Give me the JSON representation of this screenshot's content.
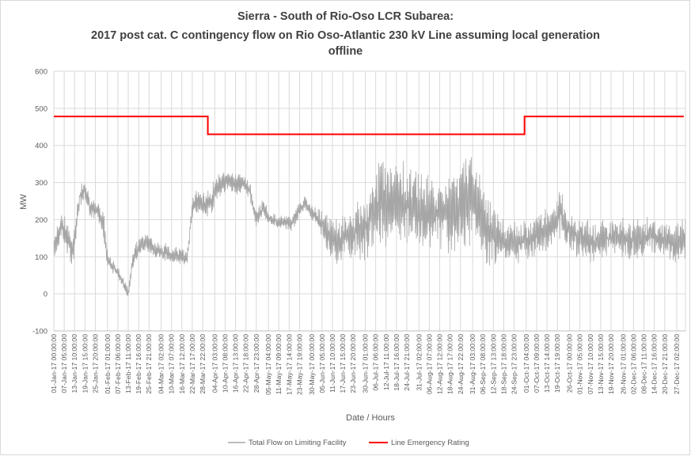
{
  "chart_data": {
    "type": "line",
    "title_lines": [
      "Sierra - South of Rio-Oso LCR Subarea:",
      "2017 post cat. C contingency flow on Rio Oso-Atlantic 230 kV Line assuming local generation",
      "offline"
    ],
    "xlabel": "Date / Hours",
    "ylabel": "MW",
    "ylim": [
      -100,
      600
    ],
    "yticks": [
      -100,
      0,
      100,
      200,
      300,
      400,
      500,
      600
    ],
    "grid": true,
    "legend_position": "bottom",
    "xticklabels": [
      "01-Jan-17 00:00:00",
      "07-Jan-17 05:00:00",
      "13-Jan-17 10:00:00",
      "19-Jan-17 15:00:00",
      "25-Jan-17 20:00:00",
      "01-Feb-17 01:00:00",
      "07-Feb-17 06:00:00",
      "13-Feb-17 11:00:00",
      "19-Feb-17 16:00:00",
      "25-Feb-17 21:00:00",
      "04-Mar-17 02:00:00",
      "10-Mar-17 07:00:00",
      "16-Mar-17 12:00:00",
      "22-Mar-17 17:00:00",
      "28-Mar-17 22:00:00",
      "04-Apr-17 03:00:00",
      "10-Apr-17 08:00:00",
      "16-Apr-17 13:00:00",
      "22-Apr-17 18:00:00",
      "28-Apr-17 23:00:00",
      "05-May-17 04:00:00",
      "11-May-17 09:00:00",
      "17-May-17 14:00:00",
      "23-May-17 19:00:00",
      "30-May-17 00:00:00",
      "05-Jun-17 05:00:00",
      "11-Jun-17 10:00:00",
      "17-Jun-17 15:00:00",
      "23-Jun-17 20:00:00",
      "30-Jun-17 01:00:00",
      "06-Jul-17 06:00:00",
      "12-Jul-17 11:00:00",
      "18-Jul-17 16:00:00",
      "24-Jul-17 21:00:00",
      "31-Jul-17 02:00:00",
      "06-Aug-17 07:00:00",
      "12-Aug-17 12:00:00",
      "18-Aug-17 17:00:00",
      "24-Aug-17 22:00:00",
      "31-Aug-17 03:00:00",
      "06-Sep-17 08:00:00",
      "12-Sep-17 13:00:00",
      "18-Sep-17 18:00:00",
      "24-Sep-17 23:00:00",
      "01-Oct-17 04:00:00",
      "07-Oct-17 09:00:00",
      "13-Oct-17 14:00:00",
      "19-Oct-17 19:00:00",
      "26-Oct-17 00:00:00",
      "01-Nov-17 05:00:00",
      "07-Nov-17 10:00:00",
      "13-Nov-17 15:00:00",
      "19-Nov-17 20:00:00",
      "26-Nov-17 01:00:00",
      "02-Dec-17 06:00:00",
      "08-Dec-17 11:00:00",
      "14-Dec-17 16:00:00",
      "20-Dec-17 21:00:00",
      "27-Dec-17 02:00:00"
    ],
    "series": [
      {
        "name": "Total Flow on Limiting Facility",
        "color": "#a6a6a6",
        "kind": "dense-hourly",
        "x": [
          "01-Jan-17",
          "05-Jan-17",
          "08-Jan-17",
          "12-Jan-17",
          "16-Jan-17",
          "19-Jan-17",
          "22-Jan-17",
          "26-Jan-17",
          "30-Jan-17",
          "01-Feb-17",
          "04-Feb-17",
          "07-Feb-17",
          "10-Feb-17",
          "13-Feb-17",
          "16-Feb-17",
          "20-Feb-17",
          "24-Feb-17",
          "28-Feb-17",
          "04-Mar-17",
          "08-Mar-17",
          "12-Mar-17",
          "16-Mar-17",
          "19-Mar-17",
          "22-Mar-17",
          "25-Mar-17",
          "28-Mar-17",
          "01-Apr-17",
          "04-Apr-17",
          "08-Apr-17",
          "12-Apr-17",
          "16-Apr-17",
          "20-Apr-17",
          "24-Apr-17",
          "28-Apr-17",
          "02-May-17",
          "06-May-17",
          "10-May-17",
          "14-May-17",
          "18-May-17",
          "22-May-17",
          "26-May-17",
          "30-May-17",
          "03-Jun-17",
          "07-Jun-17",
          "11-Jun-17",
          "15-Jun-17",
          "19-Jun-17",
          "23-Jun-17",
          "27-Jun-17",
          "01-Jul-17",
          "05-Jul-17",
          "09-Jul-17",
          "13-Jul-17",
          "17-Jul-17",
          "21-Jul-17",
          "25-Jul-17",
          "29-Jul-17",
          "02-Aug-17",
          "06-Aug-17",
          "10-Aug-17",
          "14-Aug-17",
          "18-Aug-17",
          "22-Aug-17",
          "26-Aug-17",
          "30-Aug-17",
          "03-Sep-17",
          "07-Sep-17",
          "11-Sep-17",
          "15-Sep-17",
          "19-Sep-17",
          "23-Sep-17",
          "27-Sep-17",
          "01-Oct-17",
          "05-Oct-17",
          "09-Oct-17",
          "13-Oct-17",
          "17-Oct-17",
          "21-Oct-17",
          "25-Oct-17",
          "29-Oct-17",
          "02-Nov-17",
          "06-Nov-17",
          "10-Nov-17",
          "14-Nov-17",
          "18-Nov-17",
          "22-Nov-17",
          "26-Nov-17",
          "30-Nov-17",
          "04-Dec-17",
          "08-Dec-17",
          "12-Dec-17",
          "16-Dec-17",
          "20-Dec-17",
          "24-Dec-17",
          "28-Dec-17",
          "31-Dec-17"
        ],
        "mid": [
          120,
          180,
          160,
          110,
          260,
          280,
          230,
          225,
          180,
          90,
          75,
          60,
          30,
          0,
          100,
          130,
          140,
          120,
          115,
          110,
          105,
          100,
          95,
          230,
          250,
          240,
          245,
          270,
          300,
          300,
          290,
          300,
          280,
          200,
          230,
          200,
          195,
          190,
          190,
          220,
          245,
          220,
          200,
          170,
          150,
          140,
          150,
          160,
          175,
          190,
          230,
          240,
          250,
          245,
          240,
          240,
          230,
          220,
          220,
          215,
          215,
          210,
          230,
          250,
          280,
          230,
          180,
          160,
          150,
          140,
          140,
          140,
          145,
          150,
          165,
          175,
          180,
          220,
          175,
          160,
          150,
          140,
          135,
          150,
          150,
          160,
          150,
          145,
          150,
          150,
          160,
          145,
          150,
          140,
          140,
          145
        ],
        "amp": [
          40,
          40,
          50,
          40,
          35,
          30,
          30,
          30,
          40,
          25,
          20,
          20,
          20,
          15,
          30,
          30,
          30,
          25,
          25,
          25,
          25,
          25,
          25,
          30,
          35,
          35,
          40,
          50,
          30,
          30,
          35,
          25,
          30,
          30,
          30,
          25,
          20,
          20,
          25,
          25,
          20,
          20,
          30,
          50,
          60,
          70,
          80,
          80,
          90,
          100,
          110,
          120,
          130,
          120,
          120,
          115,
          110,
          110,
          100,
          100,
          100,
          110,
          120,
          140,
          150,
          130,
          100,
          90,
          80,
          60,
          60,
          60,
          60,
          60,
          60,
          60,
          60,
          70,
          60,
          60,
          60,
          60,
          60,
          55,
          55,
          60,
          55,
          55,
          55,
          55,
          55,
          55,
          55,
          60,
          60,
          60
        ]
      },
      {
        "name": "Line Emergency Rating",
        "color": "#ff0000",
        "kind": "step",
        "segments": [
          {
            "from": "01-Jan-17",
            "to": "31-Mar-17",
            "value": 478
          },
          {
            "from": "31-Mar-17",
            "to": "30-Sep-17",
            "value": 430
          },
          {
            "from": "30-Sep-17",
            "to": "31-Dec-17",
            "value": 478
          }
        ]
      }
    ]
  }
}
